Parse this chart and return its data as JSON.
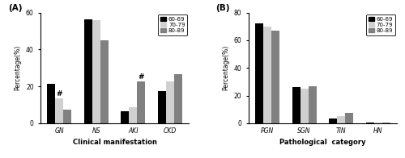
{
  "panel_A": {
    "categories": [
      "GN",
      "NS",
      "AKI",
      "CKD"
    ],
    "series": {
      "60-69": [
        21.5,
        56.5,
        6.5,
        17.5
      ],
      "70-79": [
        13.5,
        56.0,
        8.5,
        22.5
      ],
      "80-89": [
        7.5,
        45.0,
        22.5,
        26.5
      ]
    },
    "colors": [
      "#000000",
      "#d0d0d0",
      "#808080"
    ],
    "ylabel": "Percentage(%)",
    "xlabel": "Clinical manifestation",
    "ylim": [
      0,
      60
    ],
    "yticks": [
      0,
      20,
      40,
      60
    ],
    "label": "(A)",
    "hash_marks": [
      {
        "category": "GN",
        "series": "70-79",
        "text": "#"
      },
      {
        "category": "AKI",
        "series": "80-89",
        "text": "#"
      }
    ]
  },
  "panel_B": {
    "categories": [
      "PGN",
      "SGN",
      "TIN",
      "HN"
    ],
    "series": {
      "60-69": [
        72.0,
        26.0,
        3.5,
        0.8
      ],
      "70-79": [
        70.0,
        25.0,
        5.0,
        0.8
      ],
      "80-89": [
        67.0,
        26.5,
        7.5,
        0.8
      ]
    },
    "colors": [
      "#000000",
      "#d0d0d0",
      "#808080"
    ],
    "ylabel": "Percentage(%)",
    "xlabel": "Pathological  category",
    "ylim": [
      0,
      80
    ],
    "yticks": [
      0,
      20,
      40,
      60,
      80
    ],
    "label": "(B)"
  },
  "legend_labels": [
    "60-69",
    "70-79",
    "80-89"
  ],
  "bar_width": 0.22
}
